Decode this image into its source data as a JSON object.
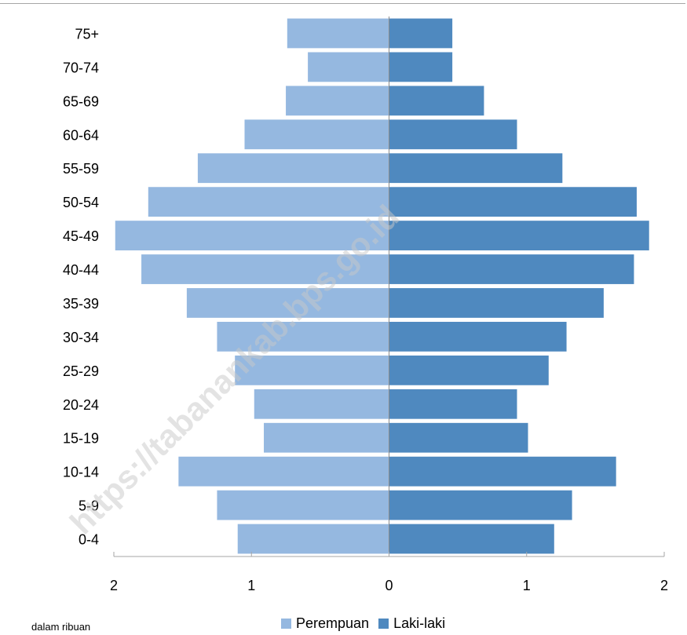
{
  "chart_data": {
    "type": "bar",
    "orientation": "horizontal",
    "layout": "population-pyramid",
    "categories": [
      "0-4",
      "5-9",
      "10-14",
      "15-19",
      "20-24",
      "25-29",
      "30-34",
      "35-39",
      "40-44",
      "45-49",
      "50-54",
      "55-59",
      "60-64",
      "65-69",
      "70-74",
      "75+"
    ],
    "series": [
      {
        "name": "Perempuan",
        "color": "#95b8e0",
        "side": "left",
        "values": [
          1.1,
          1.25,
          1.53,
          0.91,
          0.98,
          1.12,
          1.25,
          1.47,
          1.8,
          1.99,
          1.75,
          1.39,
          1.05,
          0.75,
          0.59,
          0.74
        ]
      },
      {
        "name": "Laki-laki",
        "color": "#4f89bf",
        "side": "right",
        "values": [
          1.2,
          1.33,
          1.65,
          1.01,
          0.93,
          1.16,
          1.29,
          1.56,
          1.78,
          1.89,
          1.8,
          1.26,
          0.93,
          0.69,
          0.46,
          0.46
        ]
      }
    ],
    "xlim": [
      -2,
      2
    ],
    "xticks": [
      -2,
      -1,
      0,
      1,
      2
    ],
    "xtick_labels": [
      "2",
      "1",
      "0",
      "1",
      "2"
    ],
    "unit_note": "dalam ribuan",
    "legend_position": "bottom",
    "grid": false
  },
  "watermark": "https://tabanankab.bps.go.id"
}
